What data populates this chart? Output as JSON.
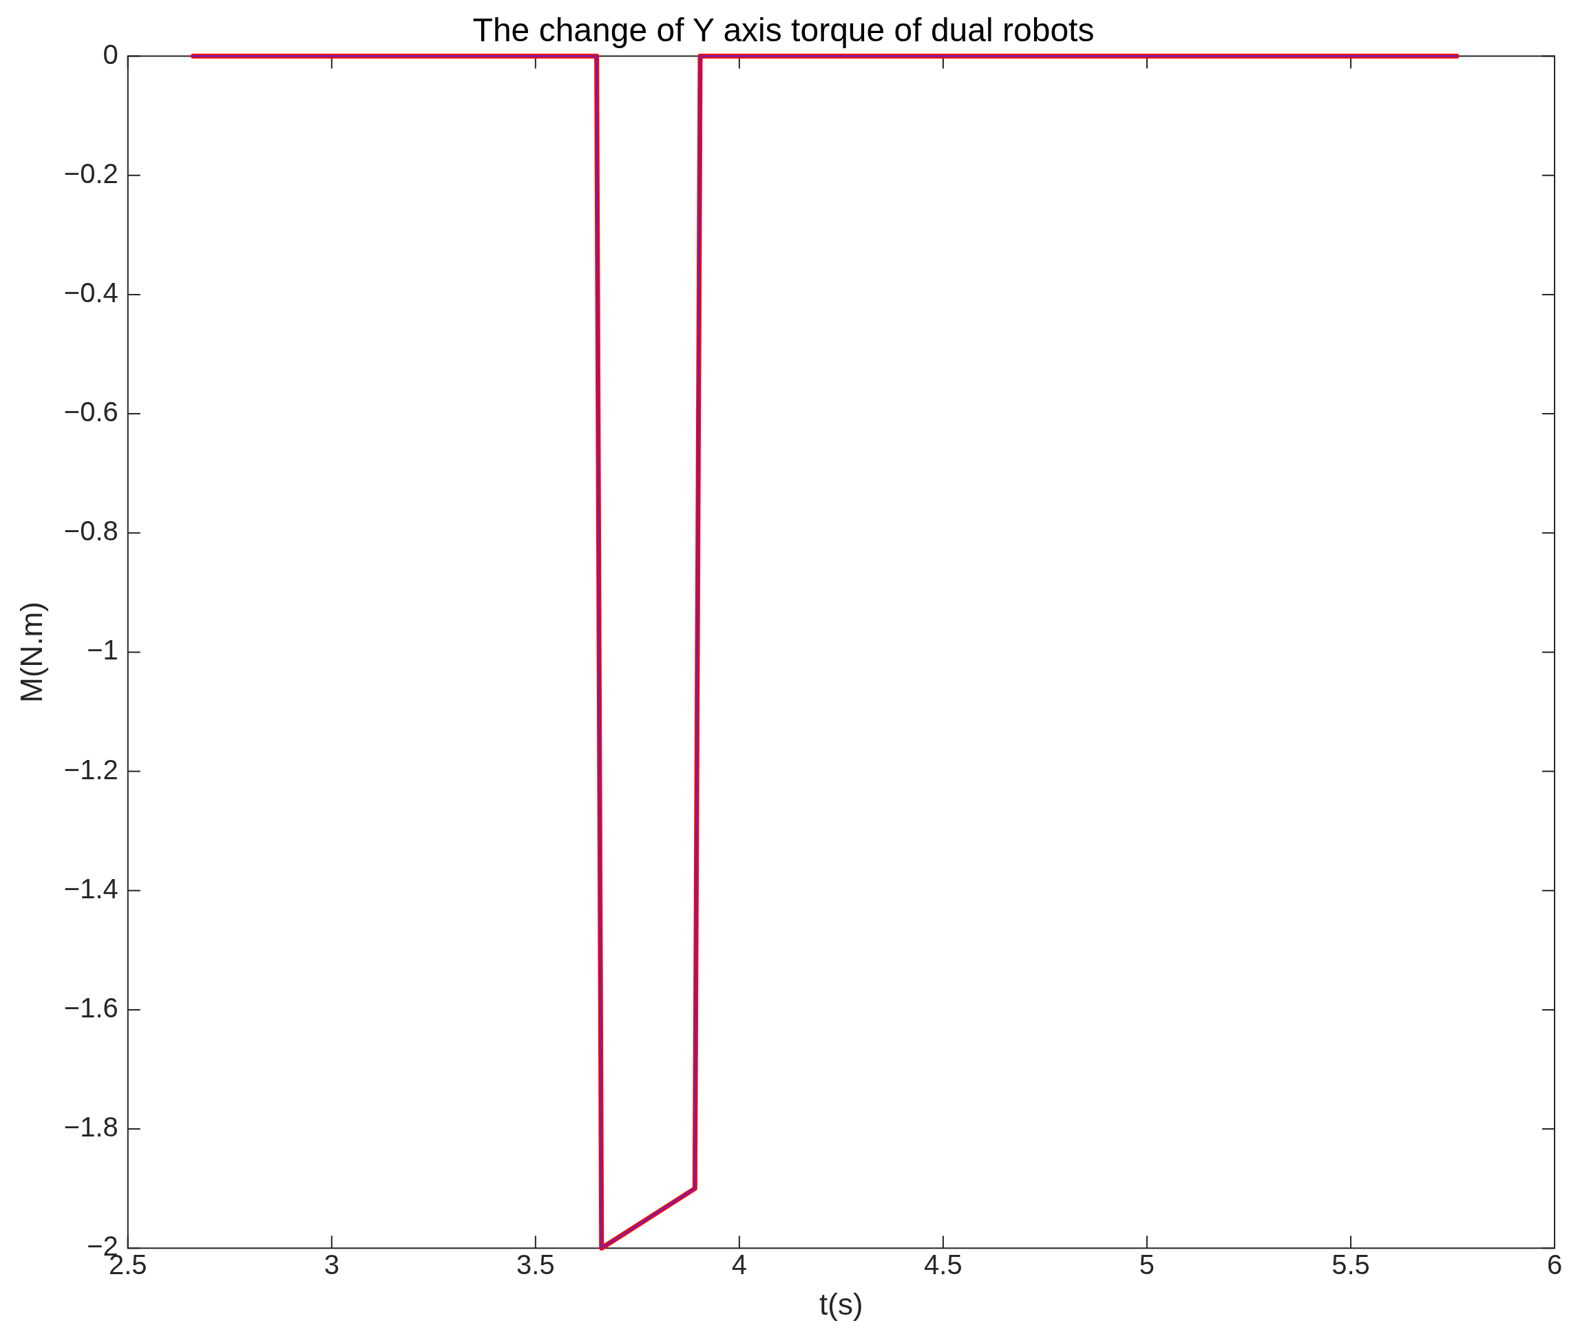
{
  "chart_data": {
    "type": "line",
    "title": "The change of Y axis torque of dual robots",
    "xlabel": "t(s)",
    "ylabel": "M(N.m)",
    "xlim": [
      2.5,
      6
    ],
    "xticks": [
      2.5,
      3,
      3.5,
      4,
      4.5,
      5,
      5.5,
      6
    ],
    "ylim": [
      -2,
      0
    ],
    "yticks": [
      {
        "value": -2,
        "label": "−2"
      },
      {
        "value": -1.8,
        "label": "−1.8"
      },
      {
        "value": -1.6,
        "label": "−1.6"
      },
      {
        "value": -1.4,
        "label": "−1.4"
      },
      {
        "value": -1.2,
        "label": "−1.2"
      },
      {
        "value": -1,
        "label": "−1"
      },
      {
        "value": -0.8,
        "label": "−0.8"
      },
      {
        "value": -0.6,
        "label": "−0.6"
      },
      {
        "value": -0.4,
        "label": "−0.4"
      },
      {
        "value": -0.2,
        "label": "−0.2"
      },
      0
    ],
    "grid": false,
    "legend": false,
    "line_style": "solid",
    "marker": "none",
    "series": [
      {
        "color": "#ff0000",
        "x": [
          2.66,
          3.65,
          3.662,
          3.891,
          3.904,
          5.76
        ],
        "values": [
          0,
          0,
          -2,
          -1.9,
          0,
          0
        ]
      },
      {
        "color": "#7a1fa2",
        "x": [
          2.66,
          3.65,
          3.662,
          3.891,
          3.904,
          5.76
        ],
        "values": [
          0,
          0,
          -2,
          -1.9,
          0,
          0
        ]
      }
    ]
  }
}
